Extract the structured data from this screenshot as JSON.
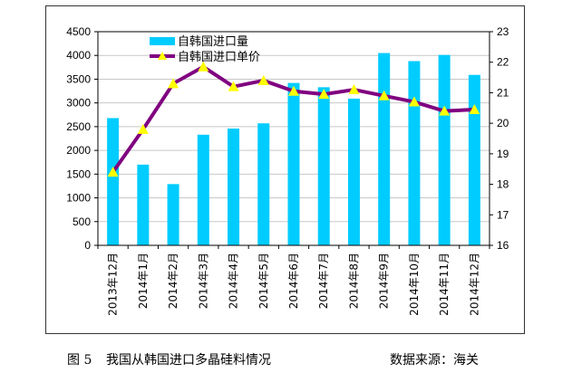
{
  "chart_data": {
    "type": "bar+line",
    "categories": [
      "2013年12月",
      "2014年1月",
      "2014年2月",
      "2014年3月",
      "2014年4月",
      "2014年5月",
      "2014年6月",
      "2014年7月",
      "2014年8月",
      "2014年9月",
      "2014年10月",
      "2014年11月",
      "2014年12月"
    ],
    "series": [
      {
        "name": "自韩国进口量",
        "type": "bar",
        "axis": "left",
        "color": "#00CCFF",
        "values": [
          2680,
          1700,
          1290,
          2330,
          2460,
          2570,
          3420,
          3330,
          3090,
          4050,
          3880,
          4010,
          3590
        ]
      },
      {
        "name": "自韩国进口单价",
        "type": "line",
        "axis": "right",
        "color": "#800080",
        "marker_color": "#FFFF00",
        "values": [
          18.4,
          19.8,
          21.3,
          21.85,
          21.2,
          21.4,
          21.05,
          20.95,
          21.1,
          20.9,
          20.7,
          20.4,
          20.45
        ]
      }
    ],
    "ylim_left": [
      0,
      4500
    ],
    "yticks_left": [
      0,
      500,
      1000,
      1500,
      2000,
      2500,
      3000,
      3500,
      4000,
      4500
    ],
    "ylim_right": [
      16,
      23
    ],
    "yticks_right": [
      16,
      17,
      18,
      19,
      20,
      21,
      22,
      23
    ],
    "grid": true,
    "legend": "top-left"
  },
  "caption": {
    "figure": "图 5",
    "title": "我国从韩国进口多晶硅料情况",
    "source": "数据来源：海关"
  }
}
